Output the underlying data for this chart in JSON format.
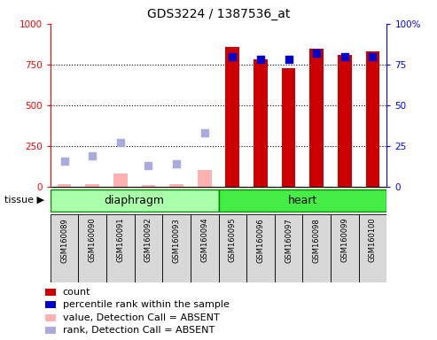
{
  "title": "GDS3224 / 1387536_at",
  "samples": [
    "GSM160089",
    "GSM160090",
    "GSM160091",
    "GSM160092",
    "GSM160093",
    "GSM160094",
    "GSM160095",
    "GSM160096",
    "GSM160097",
    "GSM160098",
    "GSM160099",
    "GSM160100"
  ],
  "tissue_groups": [
    {
      "label": "diaphragm",
      "start": 0,
      "end": 6
    },
    {
      "label": "heart",
      "start": 6,
      "end": 12
    }
  ],
  "count_present": [
    null,
    null,
    null,
    null,
    null,
    null,
    860,
    780,
    730,
    845,
    810,
    830
  ],
  "rank_present": [
    null,
    null,
    null,
    null,
    null,
    null,
    80,
    78,
    78,
    82,
    80,
    80
  ],
  "count_absent": [
    20,
    20,
    80,
    10,
    15,
    105,
    null,
    null,
    null,
    null,
    null,
    null
  ],
  "rank_absent": [
    16,
    19,
    27,
    13,
    14,
    33,
    null,
    null,
    null,
    null,
    null,
    null
  ],
  "ylim_left": [
    0,
    1000
  ],
  "ylim_right": [
    0,
    100
  ],
  "yticks_left": [
    0,
    250,
    500,
    750,
    1000
  ],
  "yticks_right": [
    0,
    25,
    50,
    75,
    100
  ],
  "bar_color_present": "#cc0000",
  "bar_color_absent": "#ffb0b0",
  "dot_color_present": "#0000cc",
  "dot_color_absent": "#aaaadd",
  "tissue_color_diaphragm": "#aaffaa",
  "tissue_color_heart": "#44ee44",
  "tissue_border_color": "#008800",
  "bg_color": "#d8d8d8",
  "legend_items": [
    {
      "color": "#cc0000",
      "label": "count"
    },
    {
      "color": "#0000cc",
      "label": "percentile rank within the sample"
    },
    {
      "color": "#ffb0b0",
      "label": "value, Detection Call = ABSENT"
    },
    {
      "color": "#aaaadd",
      "label": "rank, Detection Call = ABSENT"
    }
  ]
}
